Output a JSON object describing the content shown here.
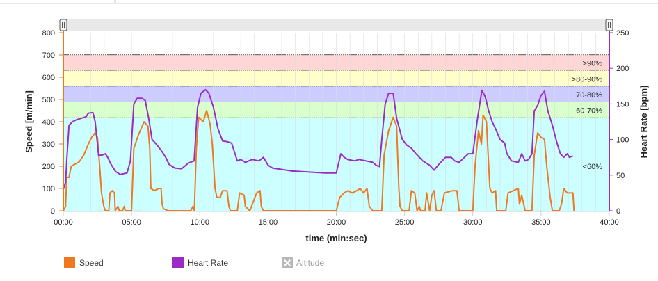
{
  "chart_data": {
    "type": "line",
    "xlabel": "time (min:sec)",
    "y_left_label": "Speed [m/min]",
    "y_right_label": "Heart Rate [bpm]",
    "x_range_sec": [
      0,
      2400
    ],
    "x_ticks": [
      "00:00",
      "05:00",
      "10:00",
      "15:00",
      "20:00",
      "25:00",
      "30:00",
      "35:00",
      "40:00"
    ],
    "y_left_range": [
      0,
      800
    ],
    "y_left_ticks": [
      "0",
      "100",
      "200",
      "300",
      "400",
      "500",
      "600",
      "700",
      "800"
    ],
    "y_right_range": [
      0,
      250
    ],
    "y_right_ticks": [
      "0",
      "50",
      "100",
      "150",
      "200",
      "250"
    ],
    "zones": [
      {
        "label": "<60%",
        "from_bpm": 0,
        "to_bpm": 131,
        "color": "#ccffff"
      },
      {
        "label": "60-70%",
        "from_bpm": 131,
        "to_bpm": 153,
        "color": "#d9ffcc"
      },
      {
        "label": "70-80%",
        "from_bpm": 153,
        "to_bpm": 175,
        "color": "#ccccff"
      },
      {
        "label": ">80-90%",
        "from_bpm": 175,
        "to_bpm": 197,
        "color": "#ffffcc"
      },
      {
        "label": ">90%",
        "from_bpm": 197,
        "to_bpm": 219,
        "color": "#ffd6d6"
      }
    ],
    "series": [
      {
        "name": "Speed",
        "axis": "left",
        "color": "#f07820",
        "points": [
          [
            0,
            0
          ],
          [
            10,
            20
          ],
          [
            15,
            150
          ],
          [
            25,
            150
          ],
          [
            35,
            200
          ],
          [
            70,
            220
          ],
          [
            90,
            250
          ],
          [
            110,
            300
          ],
          [
            125,
            330
          ],
          [
            140,
            350
          ],
          [
            150,
            330
          ],
          [
            160,
            200
          ],
          [
            168,
            80
          ],
          [
            178,
            20
          ],
          [
            185,
            0
          ],
          [
            200,
            0
          ],
          [
            205,
            80
          ],
          [
            215,
            90
          ],
          [
            225,
            80
          ],
          [
            228,
            0
          ],
          [
            240,
            20
          ],
          [
            246,
            0
          ],
          [
            260,
            0
          ],
          [
            268,
            20
          ],
          [
            272,
            0
          ],
          [
            300,
            0
          ],
          [
            310,
            280
          ],
          [
            330,
            340
          ],
          [
            355,
            400
          ],
          [
            372,
            380
          ],
          [
            380,
            280
          ],
          [
            385,
            100
          ],
          [
            400,
            90
          ],
          [
            420,
            100
          ],
          [
            430,
            100
          ],
          [
            434,
            30
          ],
          [
            440,
            10
          ],
          [
            460,
            0
          ],
          [
            560,
            0
          ],
          [
            570,
            20
          ],
          [
            576,
            0
          ],
          [
            585,
            280
          ],
          [
            595,
            420
          ],
          [
            615,
            400
          ],
          [
            630,
            450
          ],
          [
            645,
            390
          ],
          [
            655,
            300
          ],
          [
            667,
            100
          ],
          [
            675,
            60
          ],
          [
            690,
            60
          ],
          [
            700,
            90
          ],
          [
            720,
            90
          ],
          [
            728,
            20
          ],
          [
            735,
            0
          ],
          [
            765,
            0
          ],
          [
            775,
            80
          ],
          [
            795,
            70
          ],
          [
            800,
            20
          ],
          [
            820,
            0
          ],
          [
            850,
            80
          ],
          [
            865,
            90
          ],
          [
            870,
            20
          ],
          [
            880,
            0
          ],
          [
            930,
            0
          ],
          [
            1200,
            0
          ],
          [
            1215,
            60
          ],
          [
            1235,
            80
          ],
          [
            1250,
            90
          ],
          [
            1270,
            80
          ],
          [
            1290,
            90
          ],
          [
            1305,
            100
          ],
          [
            1320,
            80
          ],
          [
            1335,
            100
          ],
          [
            1345,
            20
          ],
          [
            1360,
            0
          ],
          [
            1400,
            0
          ],
          [
            1410,
            250
          ],
          [
            1430,
            360
          ],
          [
            1450,
            420
          ],
          [
            1465,
            380
          ],
          [
            1475,
            100
          ],
          [
            1480,
            20
          ],
          [
            1490,
            0
          ],
          [
            1520,
            0
          ],
          [
            1530,
            90
          ],
          [
            1545,
            80
          ],
          [
            1555,
            0
          ],
          [
            1565,
            20
          ],
          [
            1570,
            0
          ],
          [
            1590,
            0
          ],
          [
            1597,
            80
          ],
          [
            1610,
            0
          ],
          [
            1620,
            70
          ],
          [
            1630,
            90
          ],
          [
            1640,
            0
          ],
          [
            1660,
            0
          ],
          [
            1675,
            80
          ],
          [
            1710,
            90
          ],
          [
            1730,
            90
          ],
          [
            1740,
            0
          ],
          [
            1800,
            0
          ],
          [
            1810,
            200
          ],
          [
            1825,
            360
          ],
          [
            1838,
            300
          ],
          [
            1845,
            430
          ],
          [
            1860,
            400
          ],
          [
            1875,
            100
          ],
          [
            1885,
            80
          ],
          [
            1900,
            90
          ],
          [
            1905,
            0
          ],
          [
            1945,
            0
          ],
          [
            1955,
            80
          ],
          [
            2000,
            100
          ],
          [
            2005,
            30
          ],
          [
            2015,
            70
          ],
          [
            2030,
            0
          ],
          [
            2060,
            0
          ],
          [
            2070,
            250
          ],
          [
            2085,
            350
          ],
          [
            2100,
            330
          ],
          [
            2115,
            320
          ],
          [
            2125,
            200
          ],
          [
            2140,
            60
          ],
          [
            2150,
            0
          ],
          [
            2180,
            0
          ],
          [
            2190,
            30
          ],
          [
            2200,
            100
          ],
          [
            2215,
            80
          ],
          [
            2240,
            80
          ],
          [
            2245,
            0
          ]
        ]
      },
      {
        "name": "Heart Rate",
        "axis": "right",
        "color": "#9b2bc5",
        "points": [
          [
            0,
            30
          ],
          [
            10,
            40
          ],
          [
            15,
            70
          ],
          [
            25,
            120
          ],
          [
            40,
            125
          ],
          [
            60,
            128
          ],
          [
            80,
            130
          ],
          [
            100,
            132
          ],
          [
            110,
            137
          ],
          [
            130,
            138
          ],
          [
            140,
            125
          ],
          [
            155,
            78
          ],
          [
            170,
            78
          ],
          [
            185,
            80
          ],
          [
            195,
            75
          ],
          [
            210,
            65
          ],
          [
            230,
            55
          ],
          [
            250,
            51
          ],
          [
            280,
            53
          ],
          [
            295,
            70
          ],
          [
            310,
            150
          ],
          [
            325,
            158
          ],
          [
            345,
            158
          ],
          [
            360,
            155
          ],
          [
            375,
            130
          ],
          [
            390,
            100
          ],
          [
            410,
            93
          ],
          [
            430,
            85
          ],
          [
            450,
            75
          ],
          [
            465,
            65
          ],
          [
            490,
            60
          ],
          [
            520,
            59
          ],
          [
            550,
            67
          ],
          [
            575,
            70
          ],
          [
            590,
            145
          ],
          [
            605,
            165
          ],
          [
            625,
            170
          ],
          [
            640,
            165
          ],
          [
            660,
            145
          ],
          [
            680,
            115
          ],
          [
            700,
            98
          ],
          [
            720,
            97
          ],
          [
            740,
            95
          ],
          [
            750,
            85
          ],
          [
            765,
            70
          ],
          [
            780,
            72
          ],
          [
            800,
            68
          ],
          [
            830,
            72
          ],
          [
            860,
            70
          ],
          [
            880,
            75
          ],
          [
            900,
            64
          ],
          [
            920,
            60
          ],
          [
            960,
            58
          ],
          [
            1000,
            56
          ],
          [
            1050,
            55
          ],
          [
            1100,
            54
          ],
          [
            1150,
            53
          ],
          [
            1200,
            53
          ],
          [
            1220,
            80
          ],
          [
            1235,
            75
          ],
          [
            1250,
            72
          ],
          [
            1280,
            70
          ],
          [
            1300,
            72
          ],
          [
            1330,
            70
          ],
          [
            1360,
            68
          ],
          [
            1375,
            64
          ],
          [
            1390,
            62
          ],
          [
            1400,
            100
          ],
          [
            1415,
            150
          ],
          [
            1430,
            165
          ],
          [
            1450,
            165
          ],
          [
            1465,
            130
          ],
          [
            1490,
            100
          ],
          [
            1510,
            92
          ],
          [
            1530,
            88
          ],
          [
            1550,
            80
          ],
          [
            1580,
            70
          ],
          [
            1610,
            64
          ],
          [
            1630,
            57
          ],
          [
            1650,
            65
          ],
          [
            1680,
            75
          ],
          [
            1705,
            75
          ],
          [
            1720,
            70
          ],
          [
            1740,
            68
          ],
          [
            1760,
            74
          ],
          [
            1780,
            80
          ],
          [
            1800,
            80
          ],
          [
            1820,
            128
          ],
          [
            1840,
            169
          ],
          [
            1855,
            160
          ],
          [
            1870,
            140
          ],
          [
            1885,
            125
          ],
          [
            1900,
            115
          ],
          [
            1920,
            100
          ],
          [
            1940,
            95
          ],
          [
            1950,
            80
          ],
          [
            1970,
            70
          ],
          [
            2000,
            68
          ],
          [
            2015,
            80
          ],
          [
            2030,
            70
          ],
          [
            2045,
            72
          ],
          [
            2060,
            80
          ],
          [
            2070,
            140
          ],
          [
            2085,
            148
          ],
          [
            2100,
            162
          ],
          [
            2115,
            168
          ],
          [
            2130,
            140
          ],
          [
            2150,
            120
          ],
          [
            2170,
            95
          ],
          [
            2185,
            80
          ],
          [
            2200,
            75
          ],
          [
            2215,
            80
          ],
          [
            2225,
            75
          ],
          [
            2240,
            77
          ]
        ]
      }
    ],
    "legend": {
      "position": "bottom-left",
      "items": [
        "Speed",
        "Heart Rate",
        "Altitude"
      ]
    }
  },
  "legend": {
    "speed": "Speed",
    "heart_rate": "Heart Rate",
    "altitude": "Altitude"
  },
  "colors": {
    "speed": "#f07820",
    "heart_rate": "#9b2bc5",
    "altitude": "#b8b8b8"
  }
}
